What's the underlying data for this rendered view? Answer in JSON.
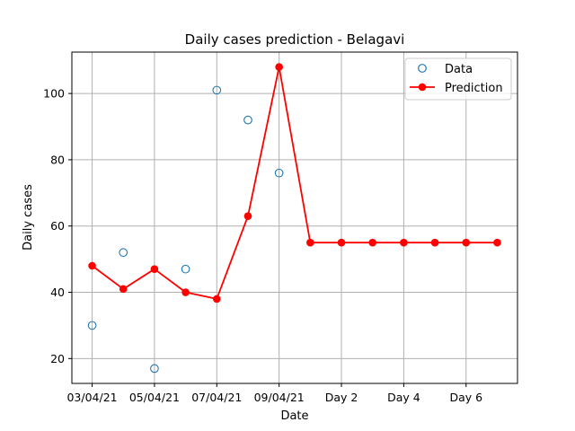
{
  "chart_data": {
    "type": "line",
    "title": "Daily cases prediction - Belagavi",
    "xlabel": "Date",
    "ylabel": "Daily cases",
    "grid": true,
    "legend_position": "top-right",
    "x_ticks": [
      {
        "x": 0,
        "label": "03/04/21"
      },
      {
        "x": 2,
        "label": "05/04/21"
      },
      {
        "x": 4,
        "label": "07/04/21"
      },
      {
        "x": 6,
        "label": "09/04/21"
      },
      {
        "x": 8,
        "label": "Day 2"
      },
      {
        "x": 10,
        "label": "Day 4"
      },
      {
        "x": 12,
        "label": "Day 6"
      }
    ],
    "xlim": [
      -0.65,
      13.65
    ],
    "ylim": [
      12.5,
      112.5
    ],
    "y_ticks": [
      20,
      40,
      60,
      80,
      100
    ],
    "series": [
      {
        "name": "Data",
        "style": "markers-hollow",
        "color": "#1f77b4",
        "x": [
          0,
          1,
          2,
          3,
          4,
          5,
          6
        ],
        "y": [
          30,
          52,
          17,
          47,
          101,
          92,
          76
        ]
      },
      {
        "name": "Prediction",
        "style": "line-markers",
        "color": "#ff0000",
        "x": [
          0,
          1,
          2,
          3,
          4,
          5,
          6,
          7,
          8,
          9,
          10,
          11,
          12,
          13
        ],
        "y": [
          48,
          41,
          47,
          40,
          38,
          63,
          108,
          55,
          55,
          55,
          55,
          55,
          55,
          55
        ]
      }
    ]
  }
}
